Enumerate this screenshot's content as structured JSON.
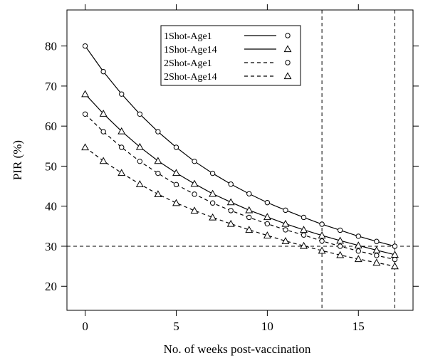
{
  "chart_data": {
    "type": "line",
    "title": "",
    "xlabel": "No. of weeks post-vaccination",
    "ylabel": "PIR (%)",
    "xlim": [
      -1,
      18
    ],
    "ylim": [
      14,
      89
    ],
    "x_ticks": [
      0,
      5,
      10,
      15
    ],
    "x_tick_labels": [
      "0",
      "5",
      "10",
      "15"
    ],
    "y_ticks": [
      20,
      30,
      40,
      50,
      60,
      70,
      80
    ],
    "y_tick_labels": [
      "20",
      "30",
      "40",
      "50",
      "60",
      "70",
      "80"
    ],
    "grid": false,
    "legend_position": "top-center",
    "reference_lines": {
      "horizontal": [
        30
      ],
      "vertical": [
        13,
        17
      ]
    },
    "x": [
      0,
      1,
      2,
      3,
      4,
      5,
      6,
      7,
      8,
      9,
      10,
      11,
      12,
      13,
      14,
      15,
      16,
      17
    ],
    "series": [
      {
        "name": "1Shot-Age1",
        "line_style": "solid",
        "marker": "circle",
        "values": [
          80.0,
          73.6,
          68.0,
          63.0,
          58.6,
          54.7,
          51.2,
          48.2,
          45.5,
          43.1,
          40.9,
          39.0,
          37.2,
          35.5,
          34.0,
          32.5,
          31.2,
          30.0
        ]
      },
      {
        "name": "1Shot-Age14",
        "line_style": "solid",
        "marker": "triangle",
        "values": [
          68.0,
          63.1,
          58.7,
          54.8,
          51.3,
          48.3,
          45.6,
          43.1,
          41.0,
          39.0,
          37.3,
          35.6,
          34.1,
          32.7,
          31.4,
          30.2,
          29.0,
          27.9
        ]
      },
      {
        "name": "2Shot-Age1",
        "line_style": "dashed",
        "marker": "circle",
        "values": [
          63.0,
          58.6,
          54.7,
          51.2,
          48.2,
          45.4,
          43.0,
          40.8,
          38.9,
          37.2,
          35.6,
          34.1,
          32.8,
          31.3,
          30.0,
          28.8,
          27.7,
          26.7
        ]
      },
      {
        "name": "2Shot-Age14",
        "line_style": "dashed",
        "marker": "triangle",
        "values": [
          54.7,
          51.3,
          48.3,
          45.5,
          43.0,
          40.8,
          38.9,
          37.2,
          35.6,
          34.1,
          32.7,
          31.3,
          30.1,
          28.9,
          27.8,
          26.8,
          25.9,
          25.0
        ]
      }
    ]
  }
}
